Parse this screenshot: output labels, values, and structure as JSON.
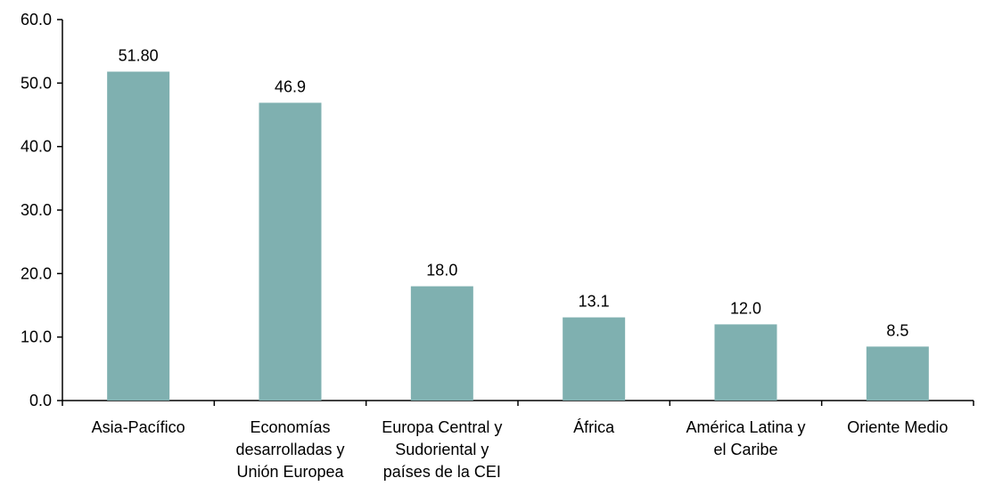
{
  "chart_data": {
    "type": "bar",
    "title": "",
    "xlabel": "",
    "ylabel": "",
    "ylim": [
      0,
      60
    ],
    "yticks": [
      "0.0",
      "10.0",
      "20.0",
      "30.0",
      "40.0",
      "50.0",
      "60.0"
    ],
    "grid": false,
    "categories": [
      [
        "Asia-Pacífico"
      ],
      [
        "Economías",
        "desarrolladas y",
        "Unión Europea"
      ],
      [
        "Europa Central y",
        "Sudoriental y",
        "países de la CEI"
      ],
      [
        "África"
      ],
      [
        "América Latina y",
        "el Caribe"
      ],
      [
        "Oriente Medio"
      ]
    ],
    "values": [
      51.8,
      46.9,
      18.0,
      13.1,
      12.0,
      8.5
    ],
    "value_labels": [
      "51.80",
      "46.9",
      "18.0",
      "13.1",
      "12.0",
      "8.5"
    ],
    "bar_color": "#7fb0b0"
  }
}
